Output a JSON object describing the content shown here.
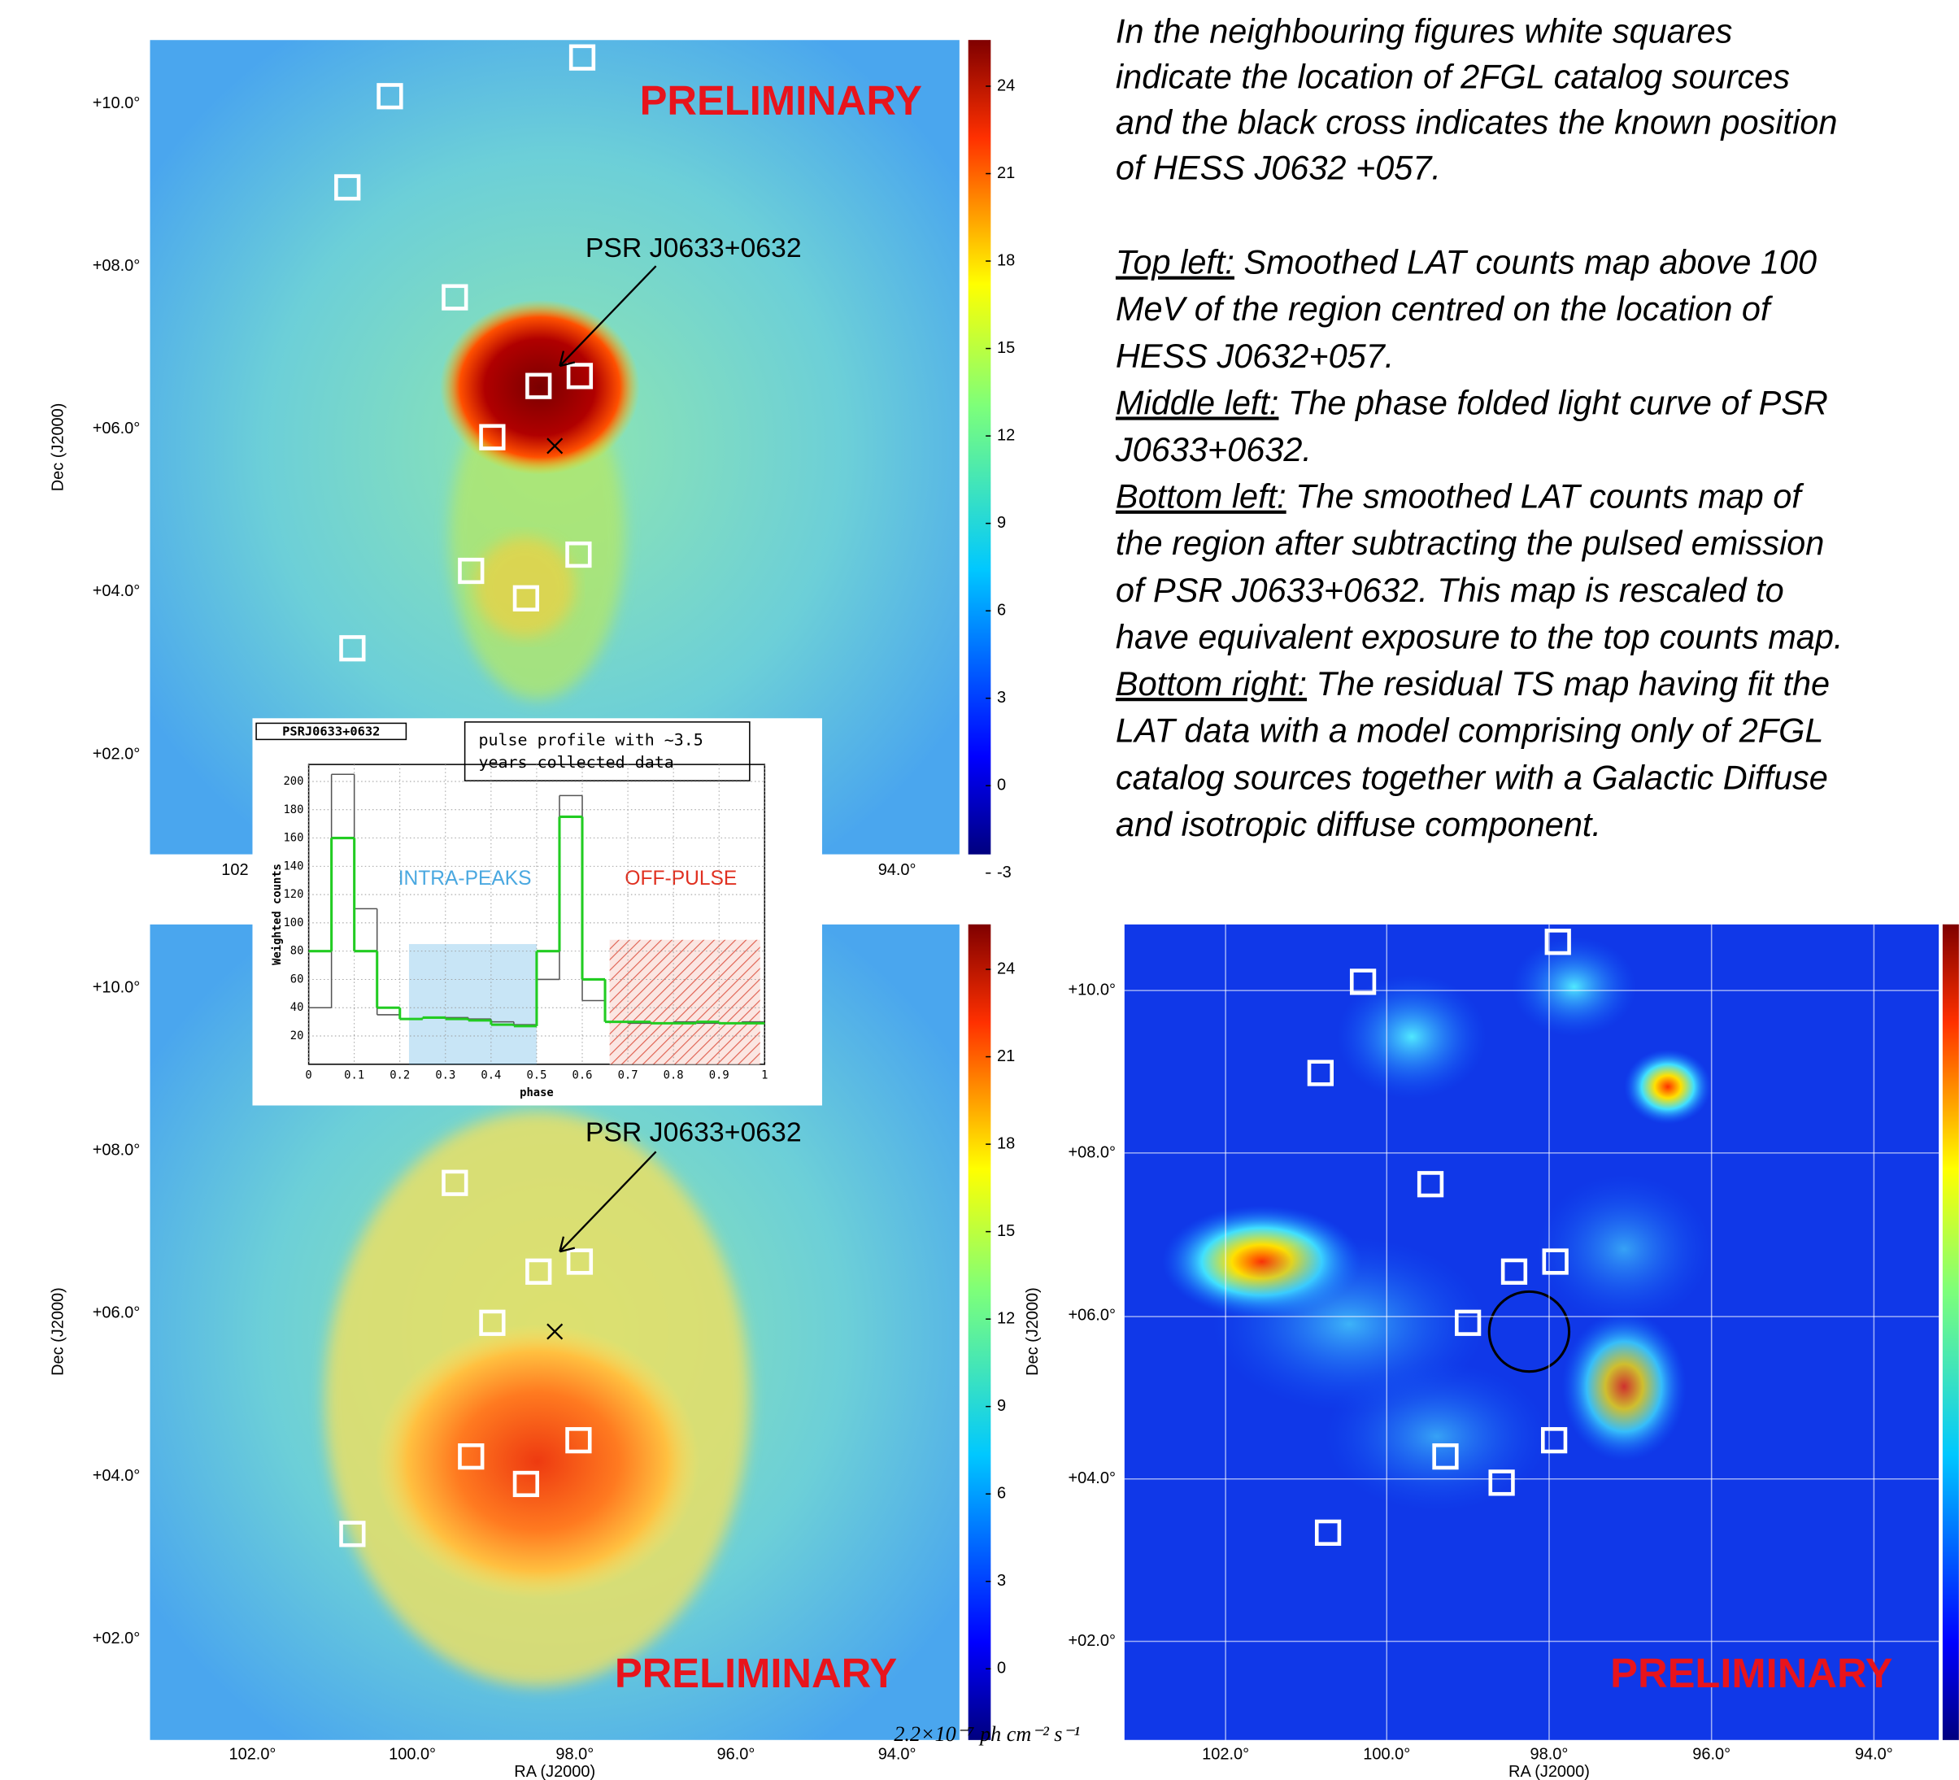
{
  "caption": {
    "intro": [
      "In the neighbouring figures white squares",
      "indicate the location of 2FGL catalog sources",
      "and the black cross indicates the known position",
      "of HESS J0632 +057."
    ],
    "items": [
      {
        "label": "Top left:",
        "lines": [
          " Smoothed LAT counts map above 100",
          "MeV of the region centred on the location of",
          "HESS J0632+057."
        ]
      },
      {
        "label": "Middle left:",
        "lines": [
          " The phase folded light curve of PSR",
          "J0633+0632."
        ]
      },
      {
        "label": "Bottom left:",
        "lines": [
          " The smoothed LAT counts map of",
          "the region after subtracting the pulsed emission",
          "of PSR J0633+0632. This map is rescaled to",
          "have equivalent exposure to the top counts map."
        ]
      },
      {
        "label": "Bottom right:",
        "lines": [
          " The residual TS map having fit the",
          "LAT data with a model comprising only of 2FGL",
          "catalog sources together with a Galactic Diffuse",
          "and isotropic diffuse component."
        ]
      }
    ]
  },
  "panels": {
    "top_left": {
      "watermark": "PRELIMINARY",
      "annotation": "PSR J0633+0632",
      "ylabel": "Dec (J2000)",
      "yticks": [
        "+10.0°",
        "+08.0°",
        "+06.0°",
        "+04.0°",
        "+02.0°"
      ],
      "xticks": [
        "102",
        "94.0°"
      ],
      "colorbar_ticks": [
        24,
        21,
        18,
        15,
        12,
        9,
        6,
        3,
        0,
        -3
      ]
    },
    "bottom_left": {
      "watermark": "PRELIMINARY",
      "annotation": "PSR J0633+0632",
      "ylabel": "Dec (J2000)",
      "xlabel": "RA (J2000)",
      "yticks": [
        "+10.0°",
        "+08.0°",
        "+06.0°",
        "+04.0°",
        "+02.0°"
      ],
      "xticks": [
        "102.0°",
        "100.0°",
        "98.0°",
        "96.0°",
        "94.0°"
      ],
      "colorbar_ticks": [
        24,
        21,
        18,
        15,
        12,
        9,
        6,
        3,
        0
      ],
      "colorbar_unit": "2.2×10⁻⁷ ph cm⁻² s⁻¹"
    },
    "bottom_right": {
      "watermark": "PRELIMINARY",
      "ylabel": "Dec (J2000)",
      "xlabel": "RA (J2000)",
      "yticks": [
        "+10.0°",
        "+08.0°",
        "+06.0°",
        "+04.0°",
        "+02.0°"
      ],
      "xticks": [
        "102.0°",
        "100.0°",
        "98.0°",
        "96.0°",
        "94.0°"
      ]
    }
  },
  "inset": {
    "title": "PSRJ0633+0632",
    "note": [
      "pulse profile with ~3.5",
      "years collected data"
    ],
    "ylabel": "Weighted counts",
    "xlabel": "phase",
    "xlim": [
      0,
      1
    ],
    "ylim": [
      0,
      212
    ],
    "xticks": [
      0,
      0.1,
      0.2,
      0.3,
      0.4,
      0.5,
      0.6,
      0.7,
      0.8,
      0.9,
      1
    ],
    "yticks": [
      20,
      40,
      60,
      80,
      100,
      120,
      140,
      160,
      180,
      200
    ],
    "bins": [
      0,
      0.05,
      0.1,
      0.15,
      0.2,
      0.25,
      0.3,
      0.35,
      0.4,
      0.45,
      0.5,
      0.55,
      0.6,
      0.65,
      0.7,
      0.75,
      0.8,
      0.85,
      0.9,
      0.95,
      1
    ],
    "series": [
      {
        "color": "#555555",
        "values": [
          40,
          205,
          110,
          35,
          32,
          33,
          33,
          32,
          30,
          28,
          60,
          190,
          45,
          30,
          29,
          29,
          30,
          29,
          29,
          30
        ]
      },
      {
        "color": "#22cc22",
        "values": [
          80,
          160,
          80,
          40,
          32,
          33,
          32,
          31,
          28,
          27,
          80,
          175,
          60,
          30,
          30,
          29,
          29,
          30,
          29,
          29
        ]
      }
    ],
    "regions": [
      {
        "label": "INTRA-PEAKS",
        "x": [
          0.22,
          0.5
        ],
        "top": 85,
        "color": "#4aa8e0"
      },
      {
        "label": "OFF-PULSE",
        "x": [
          0.66,
          0.99
        ],
        "top": 88,
        "color": "#e03020"
      }
    ]
  }
}
